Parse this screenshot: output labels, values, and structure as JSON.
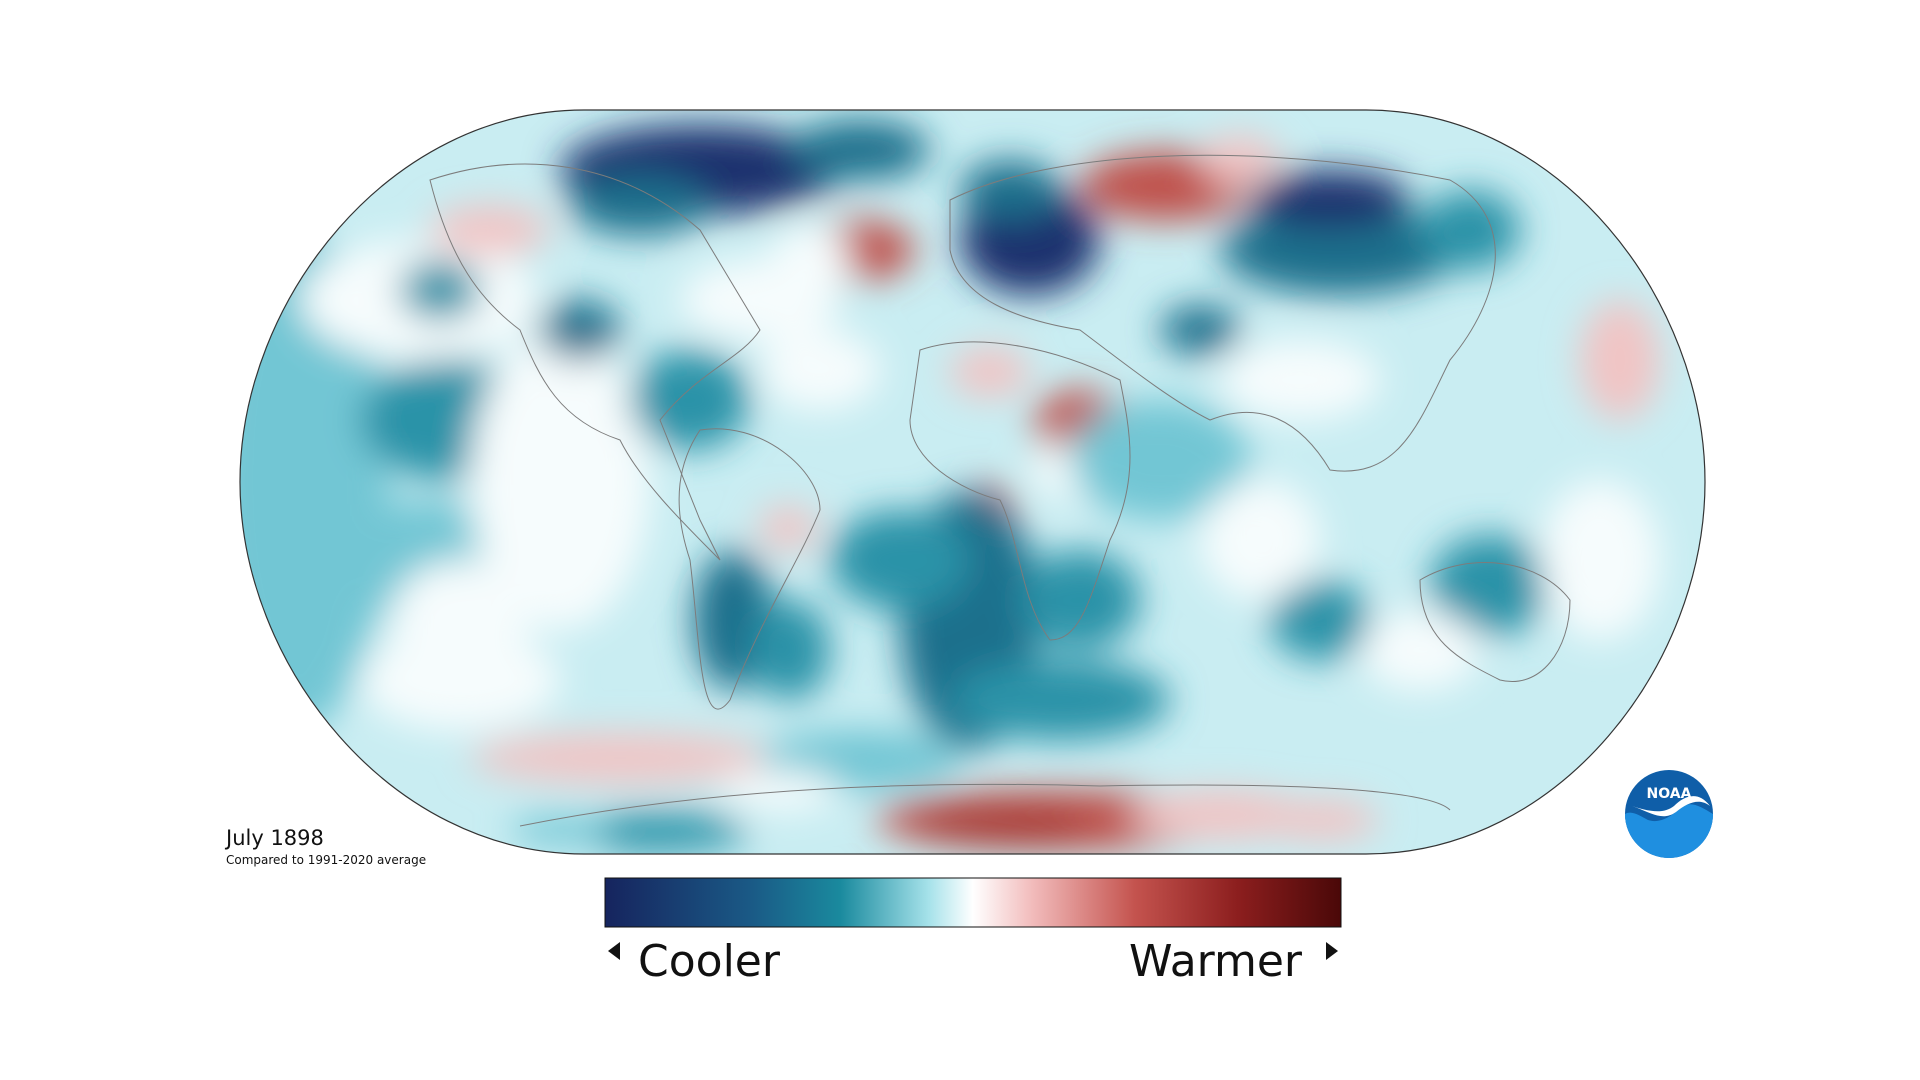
{
  "map": {
    "title": "July 1898",
    "subtitle": "Compared to 1991-2020 average"
  },
  "legend": {
    "low_label": "Cooler",
    "high_label": "Warmer"
  },
  "logo": {
    "text": "NOAA"
  }
}
